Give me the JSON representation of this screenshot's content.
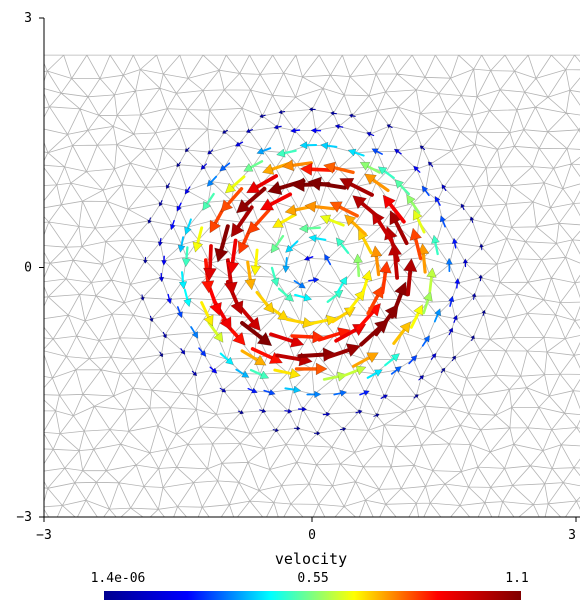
{
  "chart_data": {
    "type": "vector-field",
    "title": "",
    "xlim": [
      -3,
      3
    ],
    "ylim": [
      -3,
      3
    ],
    "x_ticks": [
      {
        "value": -3,
        "label": "−3"
      },
      {
        "value": 0,
        "label": "0"
      },
      {
        "value": 3,
        "label": "3"
      }
    ],
    "y_ticks": [
      {
        "value": 3,
        "label": "3"
      },
      {
        "value": 0,
        "label": "0"
      },
      {
        "value": -3,
        "label": "−3"
      }
    ],
    "mesh": "unstructured triangular mesh",
    "field": {
      "name": "velocity",
      "pattern": "counter-clockwise vortex centered at origin",
      "peak_radius": 1.0,
      "extent_radius": 2.0,
      "max_magnitude": 1.1
    },
    "colorbar": {
      "label": "velocity",
      "min_label": "1.4e-06",
      "mid_label": "0.55",
      "max_label": "1.1",
      "min": 1.4e-06,
      "max": 1.1,
      "colors": [
        "#00008f",
        "#0000ff",
        "#00ffff",
        "#ffff00",
        "#ff0000",
        "#800000"
      ]
    }
  }
}
